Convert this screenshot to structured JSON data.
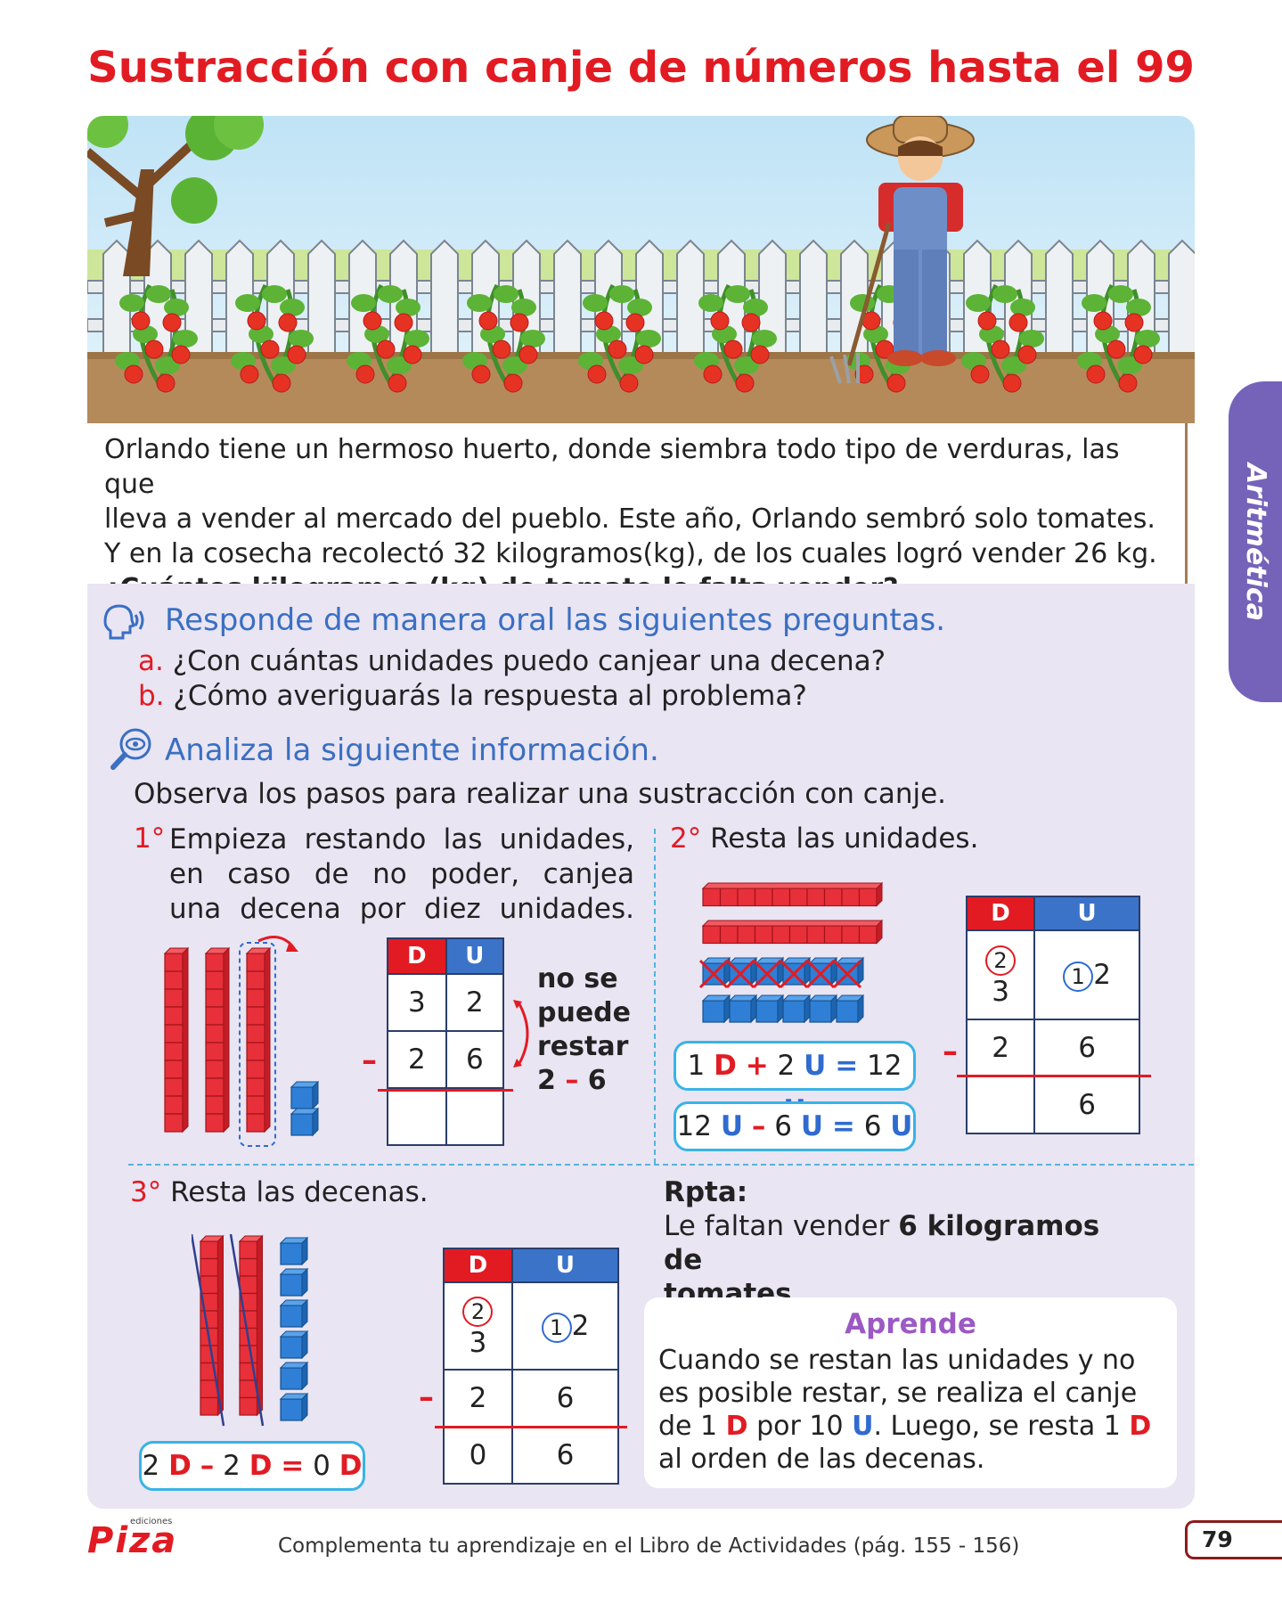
{
  "title": "Sustracción con canje de números hasta el 99",
  "side_tab": "Aritmética",
  "story": {
    "line1": "Orlando tiene un hermoso huerto, donde siembra todo tipo de verduras, las que",
    "line2": "lleva a vender al mercado del pueblo. Este año, Orlando sembró solo tomates.",
    "line3": "Y en la cosecha recolectó 32 kilogramos(kg), de los cuales logró vender 26 kg.",
    "question": "¿Cuántos kilogramos (kg) de tomate le falta vender?"
  },
  "oral": {
    "heading": "Responde de manera oral las siguientes preguntas.",
    "a_letter": "a.",
    "a_text": "¿Con cuántas unidades puedo canjear una decena?",
    "b_letter": "b.",
    "b_text": "¿Cómo averiguarás la respuesta al problema?"
  },
  "analyze": {
    "heading": "Analiza la siguiente información.",
    "intro": "Observa los pasos para realizar una sustracción con canje."
  },
  "step1": {
    "num": "1°",
    "line1": "Empieza restando las unidades,",
    "line2": "en caso de no poder, canjea",
    "line3": "una decena por diez unidades.",
    "table": {
      "h_d": "D",
      "h_u": "U",
      "r1d": "3",
      "r1u": "2",
      "minus": "–",
      "r2d": "2",
      "r2u": "6"
    },
    "note1": "no se",
    "note2": "puede",
    "note3": "restar",
    "note4_a": "2",
    "note4_op": "–",
    "note4_b": "6"
  },
  "step2": {
    "num": "2°",
    "text": "Resta las unidades.",
    "pill1": {
      "a": "1",
      "d": "D",
      "plus": "+",
      "b": "2",
      "u": "U",
      "eq": "=",
      "c": "12",
      "u2": "U"
    },
    "pill2": {
      "a": "12",
      "u": "U",
      "minus": "–",
      "b": "6",
      "u2": "U",
      "eq": "=",
      "c": "6",
      "u3": "U"
    },
    "table": {
      "h_d": "D",
      "h_u": "U",
      "new_d": "2",
      "r1d": "3",
      "carry": "1",
      "r1u": "2",
      "minus": "–",
      "r2d": "2",
      "r2u": "6",
      "r3u": "6"
    }
  },
  "step3": {
    "num": "3°",
    "text": "Resta las decenas.",
    "pill": {
      "a": "2",
      "d": "D",
      "minus": "–",
      "b": "2",
      "d2": "D",
      "eq": "=",
      "c": "0",
      "d3": "D"
    },
    "table": {
      "h_d": "D",
      "h_u": "U",
      "new_d": "2",
      "r1d": "3",
      "carry": "1",
      "r1u": "2",
      "minus": "–",
      "r2d": "2",
      "r2u": "6",
      "r3d": "0",
      "r3u": "6"
    }
  },
  "answer": {
    "label": "Rpta:",
    "line1_pre": "Le faltan vender ",
    "line1_bold": "6 kilogramos de",
    "line2_bold": "tomates",
    "line2_post": "."
  },
  "aprende": {
    "title": "Aprende",
    "line1": "Cuando se restan las unidades y no",
    "line2": "es posible restar, se realiza el canje",
    "line3_pre": "de 1 ",
    "line3_d": "D",
    "line3_mid": " por 10 ",
    "line3_u": "U",
    "line3_post": ". Luego, se resta 1 ",
    "line3_d2": "D",
    "line4": "al orden de las decenas."
  },
  "footer": {
    "brand": "Piza",
    "brand_small": "ediciones",
    "text": "Complementa tu aprendizaje en el Libro de Actividades (pág. 155 - 156)",
    "page": "79"
  },
  "colors": {
    "red": "#e21b23",
    "blue": "#2f6bd0",
    "purple": "#7463b9",
    "panel": "#e9e5f3"
  }
}
